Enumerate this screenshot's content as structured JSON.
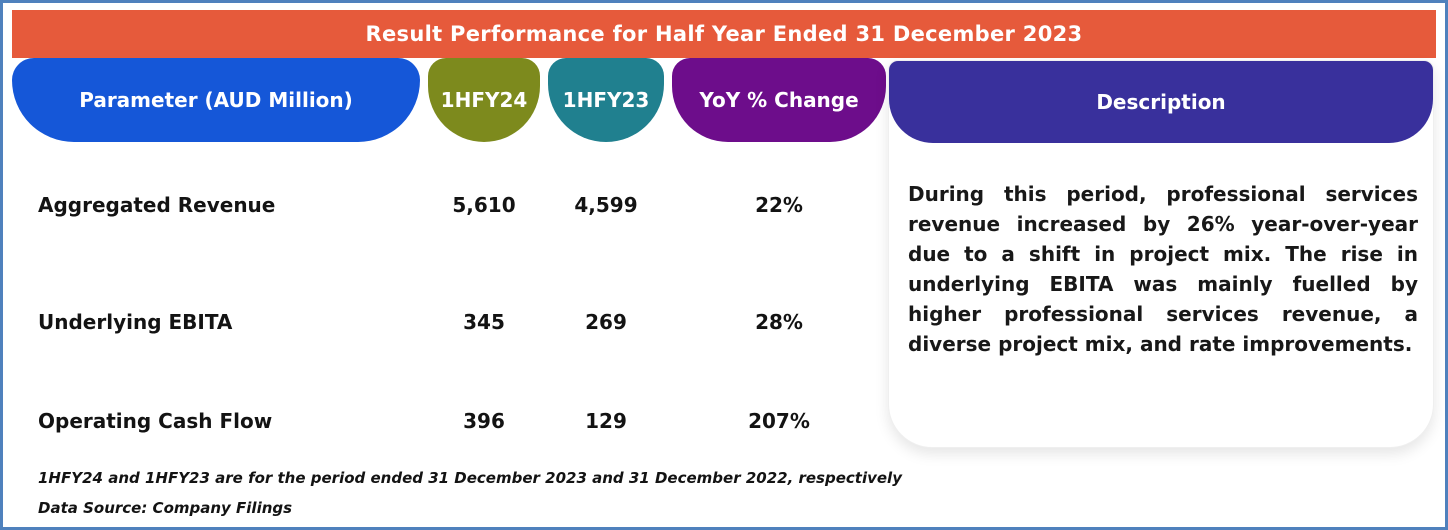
{
  "header": {
    "title": "Result Performance for Half Year Ended 31 December 2023"
  },
  "columns": {
    "parameter": "Parameter (AUD Million)",
    "hfy24": "1HFY24",
    "hfy23": "1HFY23",
    "yoy": "YoY % Change",
    "description": "Description"
  },
  "table": {
    "rows": [
      {
        "parameter": "Aggregated Revenue",
        "hfy24": "5,610",
        "hfy23": "4,599",
        "yoy": "22%"
      },
      {
        "parameter": "Underlying EBITA",
        "hfy24": "345",
        "hfy23": "269",
        "yoy": "28%"
      },
      {
        "parameter": "Operating Cash Flow",
        "hfy24": "396",
        "hfy23": "129",
        "yoy": "207%"
      }
    ]
  },
  "description": {
    "text": "During this period, professional services revenue increased by 26% year-over-year due to a shift in project mix. The rise in underlying EBITA was mainly fuelled by higher professional services revenue, a diverse project mix, and rate improvements."
  },
  "footnotes": {
    "line1": "1HFY24 and 1HFY23 are for the period ended 31 December 2023 and 31 December 2022, respectively",
    "line2": "Data Source: Company Filings"
  },
  "colors": {
    "frame_border": "#4f81bd",
    "title_banner": "#e65a3b",
    "parameter_pill": "#1557d8",
    "hfy24_pill": "#7d8a1d",
    "hfy23_pill": "#20808f",
    "yoy_pill": "#6d0d8b",
    "description_pill": "#39309c",
    "text": "#131313",
    "pill_text": "#ffffff"
  },
  "chart_data": {
    "type": "table",
    "title": "Result Performance for Half Year Ended 31 December 2023",
    "columns": [
      "Parameter (AUD Million)",
      "1HFY24",
      "1HFY23",
      "YoY % Change"
    ],
    "rows": [
      [
        "Aggregated Revenue",
        5610,
        4599,
        "22%"
      ],
      [
        "Underlying EBITA",
        345,
        269,
        "28%"
      ],
      [
        "Operating Cash Flow",
        396,
        129,
        "207%"
      ]
    ],
    "units": "AUD Million",
    "notes": [
      "1HFY24 and 1HFY23 are for the period ended 31 December 2023 and 31 December 2022, respectively",
      "Data Source: Company Filings"
    ]
  }
}
